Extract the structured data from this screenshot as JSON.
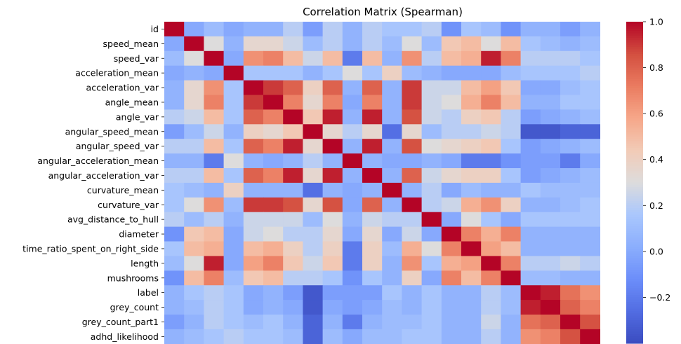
{
  "chart_data": {
    "type": "heatmap",
    "title": "Correlation Matrix (Spearman)",
    "xlabel": "",
    "ylabel": "",
    "labels": [
      "id",
      "speed_mean",
      "speed_var",
      "acceleration_mean",
      "acceleration_var",
      "angle_mean",
      "angle_var",
      "angular_speed_mean",
      "angular_speed_var",
      "angular_acceleration_mean",
      "angular_acceleration_var",
      "curvature_mean",
      "curvature_var",
      "avg_distance_to_hull",
      "diameter",
      "time_ratio_spent_on_right_side",
      "length",
      "mushrooms",
      "label",
      "grey_count",
      "grey_count_part1",
      "adhd_likelihood"
    ],
    "x_tick_labels_shown": false,
    "colormap": "coolwarm",
    "vmin": -0.4,
    "vmax": 1.0,
    "colorbar_ticks": [
      -0.2,
      0.0,
      0.2,
      0.4,
      0.6,
      0.8,
      1.0
    ],
    "colorbar_tick_labels": [
      "−0.2",
      "0.0",
      "0.2",
      "0.4",
      "0.6",
      "0.8",
      "1.0"
    ],
    "matrix": [
      [
        1.0,
        0.0,
        0.1,
        0.0,
        0.05,
        0.05,
        0.2,
        -0.05,
        0.2,
        0.05,
        0.2,
        0.15,
        0.15,
        0.2,
        -0.1,
        0.15,
        0.1,
        -0.1,
        0.05,
        0.05,
        -0.05,
        0.05
      ],
      [
        0.0,
        1.0,
        0.3,
        0.05,
        0.35,
        0.35,
        0.25,
        0.1,
        0.2,
        0.05,
        0.2,
        0.1,
        0.3,
        0.1,
        0.45,
        0.5,
        0.3,
        0.5,
        0.15,
        0.1,
        0.05,
        0.1
      ],
      [
        0.1,
        0.3,
        1.0,
        0.0,
        0.65,
        0.7,
        0.5,
        0.25,
        0.5,
        -0.2,
        0.5,
        0.05,
        0.65,
        0.2,
        0.5,
        0.55,
        0.95,
        0.7,
        0.2,
        0.2,
        0.2,
        0.15
      ],
      [
        0.0,
        0.05,
        0.0,
        1.0,
        0.15,
        0.15,
        0.15,
        0.05,
        0.15,
        0.3,
        0.15,
        0.4,
        0.1,
        0.05,
        0.0,
        0.0,
        0.0,
        0.1,
        0.15,
        0.15,
        0.15,
        0.2
      ],
      [
        0.05,
        0.35,
        0.65,
        0.15,
        1.0,
        0.9,
        0.8,
        0.4,
        0.8,
        0.05,
        0.8,
        0.05,
        0.9,
        0.25,
        0.25,
        0.5,
        0.6,
        0.45,
        0.0,
        0.0,
        0.1,
        0.15
      ],
      [
        0.05,
        0.35,
        0.7,
        0.15,
        0.9,
        1.0,
        0.7,
        0.35,
        0.7,
        0.0,
        0.7,
        0.05,
        0.9,
        0.25,
        0.3,
        0.55,
        0.7,
        0.5,
        0.05,
        0.05,
        0.15,
        0.15
      ],
      [
        0.2,
        0.25,
        0.5,
        0.15,
        0.8,
        0.7,
        1.0,
        0.45,
        0.95,
        0.05,
        0.95,
        0.05,
        0.85,
        0.25,
        0.2,
        0.4,
        0.45,
        0.2,
        -0.05,
        0.0,
        0.05,
        0.1
      ],
      [
        -0.05,
        0.1,
        0.25,
        0.05,
        0.4,
        0.35,
        0.45,
        1.0,
        0.35,
        0.2,
        0.35,
        -0.25,
        0.35,
        0.1,
        0.2,
        0.2,
        0.25,
        0.2,
        -0.35,
        -0.35,
        -0.3,
        -0.3
      ],
      [
        0.2,
        0.2,
        0.5,
        0.15,
        0.8,
        0.7,
        0.95,
        0.35,
        1.0,
        0.05,
        0.95,
        0.05,
        0.85,
        0.3,
        0.35,
        0.4,
        0.45,
        0.15,
        -0.05,
        0.0,
        0.05,
        0.1
      ],
      [
        0.05,
        0.05,
        -0.2,
        0.3,
        0.05,
        0.0,
        0.05,
        0.2,
        0.05,
        1.0,
        0.05,
        0.0,
        0.0,
        0.05,
        0.0,
        -0.2,
        -0.2,
        -0.1,
        -0.05,
        -0.05,
        -0.2,
        0.0
      ],
      [
        0.2,
        0.2,
        0.5,
        0.15,
        0.8,
        0.7,
        0.95,
        0.35,
        0.95,
        0.05,
        1.0,
        0.05,
        0.8,
        0.25,
        0.35,
        0.4,
        0.4,
        0.15,
        -0.05,
        0.0,
        0.05,
        0.1
      ],
      [
        0.15,
        0.1,
        0.05,
        0.4,
        0.05,
        0.05,
        0.05,
        -0.25,
        0.05,
        0.0,
        0.05,
        1.0,
        0.05,
        0.2,
        0.0,
        0.1,
        0.05,
        0.05,
        0.15,
        0.1,
        0.1,
        0.1
      ],
      [
        0.15,
        0.3,
        0.65,
        0.1,
        0.9,
        0.9,
        0.85,
        0.35,
        0.85,
        0.0,
        0.8,
        0.05,
        1.0,
        0.2,
        0.25,
        0.55,
        0.65,
        0.4,
        0.05,
        0.05,
        0.1,
        0.15
      ],
      [
        0.2,
        0.1,
        0.2,
        0.05,
        0.25,
        0.25,
        0.25,
        0.1,
        0.3,
        0.05,
        0.25,
        0.2,
        0.2,
        1.0,
        0.0,
        0.3,
        0.15,
        0.0,
        0.15,
        0.15,
        0.15,
        0.15
      ],
      [
        -0.1,
        0.45,
        0.5,
        0.0,
        0.25,
        0.3,
        0.2,
        0.2,
        0.35,
        0.0,
        0.35,
        0.0,
        0.25,
        0.0,
        1.0,
        0.7,
        0.55,
        0.7,
        0.05,
        0.05,
        0.05,
        0.05
      ],
      [
        0.15,
        0.5,
        0.55,
        0.0,
        0.5,
        0.55,
        0.4,
        0.2,
        0.4,
        -0.2,
        0.4,
        0.1,
        0.55,
        0.3,
        0.7,
        1.0,
        0.6,
        0.5,
        0.05,
        0.05,
        0.05,
        0.05
      ],
      [
        0.1,
        0.3,
        0.95,
        0.0,
        0.6,
        0.7,
        0.45,
        0.25,
        0.45,
        -0.2,
        0.4,
        0.05,
        0.65,
        0.15,
        0.55,
        0.6,
        1.0,
        0.7,
        0.2,
        0.2,
        0.25,
        0.2
      ],
      [
        -0.1,
        0.5,
        0.7,
        0.1,
        0.45,
        0.5,
        0.2,
        0.2,
        0.15,
        -0.1,
        0.15,
        0.05,
        0.4,
        0.0,
        0.7,
        0.5,
        0.7,
        1.0,
        0.1,
        0.1,
        0.05,
        0.05
      ],
      [
        0.05,
        0.15,
        0.2,
        0.15,
        0.0,
        0.05,
        -0.05,
        -0.35,
        -0.05,
        -0.05,
        -0.05,
        0.15,
        0.05,
        0.15,
        0.05,
        0.05,
        0.2,
        0.1,
        1.0,
        0.95,
        0.75,
        0.65
      ],
      [
        0.05,
        0.1,
        0.2,
        0.15,
        0.0,
        0.05,
        0.0,
        -0.35,
        0.0,
        -0.05,
        0.0,
        0.1,
        0.05,
        0.15,
        0.05,
        0.05,
        0.2,
        0.1,
        0.95,
        1.0,
        0.8,
        0.7
      ],
      [
        -0.05,
        0.05,
        0.2,
        0.15,
        0.1,
        0.15,
        0.05,
        -0.3,
        0.05,
        -0.2,
        0.05,
        0.1,
        0.1,
        0.15,
        0.05,
        0.05,
        0.25,
        0.05,
        0.75,
        0.8,
        1.0,
        0.85
      ],
      [
        0.05,
        0.1,
        0.15,
        0.2,
        0.15,
        0.15,
        0.1,
        -0.3,
        0.1,
        0.0,
        0.1,
        0.1,
        0.15,
        0.15,
        0.05,
        0.05,
        0.2,
        0.05,
        0.65,
        0.7,
        0.85,
        1.0
      ]
    ]
  }
}
